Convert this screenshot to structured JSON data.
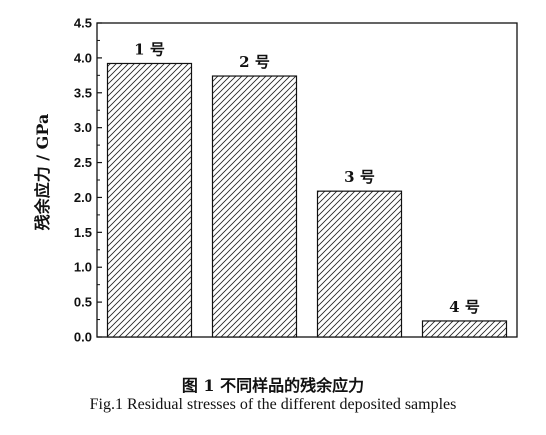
{
  "chart_data": {
    "type": "bar",
    "categories": [
      "1 号",
      "2 号",
      "3 号",
      "4 号"
    ],
    "values": [
      3.92,
      3.74,
      2.09,
      0.23
    ],
    "data_labels": [
      "1 号",
      "2 号",
      "3 号",
      "4 号"
    ],
    "ylabel": "残余应力 / GPa",
    "ylim": [
      0,
      4.5
    ],
    "yticks": [
      "0.0",
      "0.5",
      "1.0",
      "1.5",
      "2.0",
      "2.5",
      "3.0",
      "3.5",
      "4.0",
      "4.5"
    ],
    "grid": false,
    "bar_fill": "hatched"
  },
  "caption_cn": "图 1  不同样品的残余应力",
  "caption_en": "Fig.1 Residual stresses of the different deposited samples"
}
